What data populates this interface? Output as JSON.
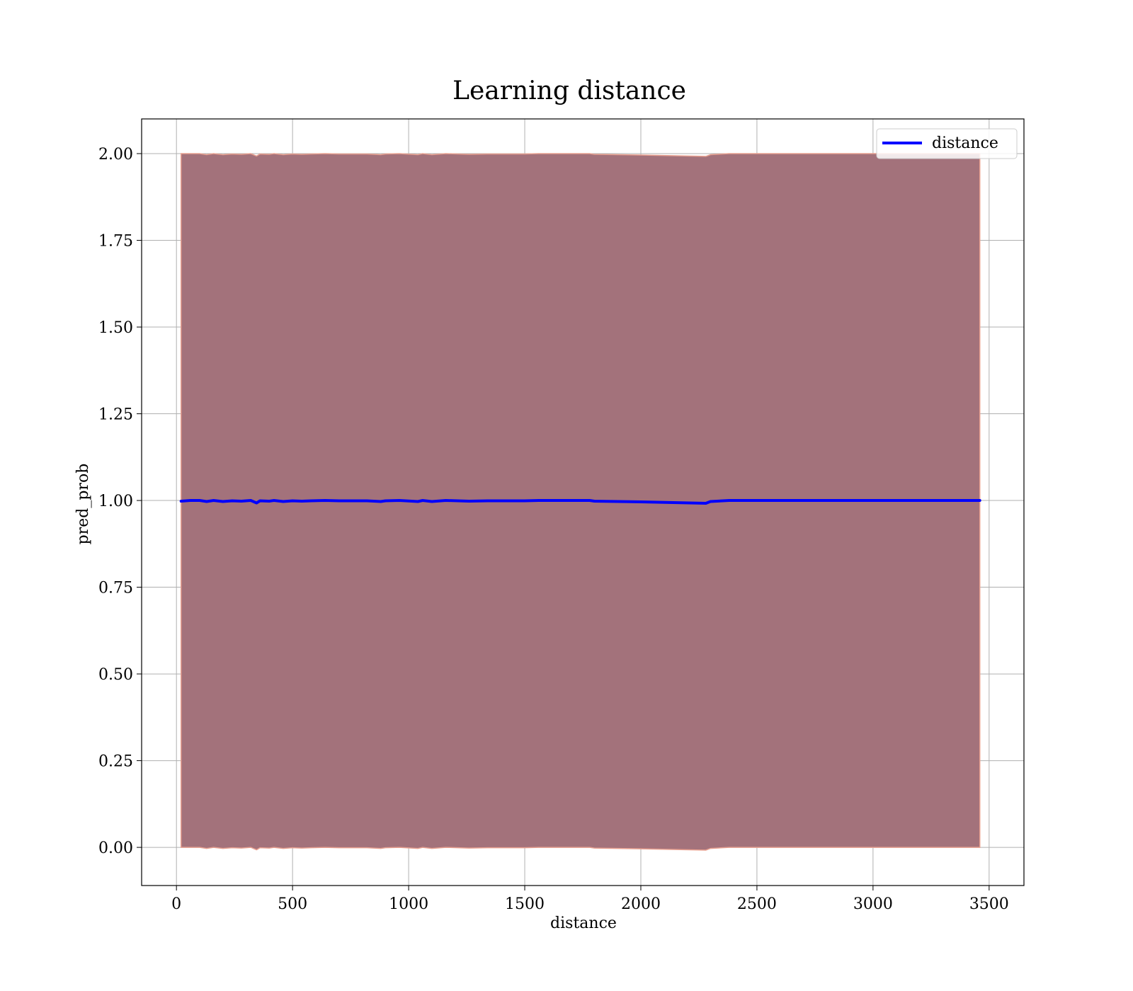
{
  "chart_data": {
    "type": "line",
    "title": "Learning distance",
    "xlabel": "distance",
    "ylabel": "pred_prob",
    "xlim": [
      -150,
      3650
    ],
    "ylim": [
      -0.11,
      2.1
    ],
    "grid": true,
    "legend": {
      "position": "top-right",
      "entries": [
        "distance"
      ]
    },
    "xticks": [
      0,
      500,
      1000,
      1500,
      2000,
      2500,
      3000,
      3500
    ],
    "xtick_labels": [
      "0",
      "500",
      "1000",
      "1500",
      "2000",
      "2500",
      "3000",
      "3500"
    ],
    "yticks": [
      0.0,
      0.25,
      0.5,
      0.75,
      1.0,
      1.25,
      1.5,
      1.75,
      2.0
    ],
    "ytick_labels": [
      "0.00",
      "0.25",
      "0.50",
      "0.75",
      "1.00",
      "1.25",
      "1.50",
      "1.75",
      "2.00"
    ],
    "colors": {
      "line": "#0000ff",
      "band_fill": "#a3727b",
      "band_edge": "#e8a090"
    },
    "series": [
      {
        "name": "distance",
        "x": [
          20,
          60,
          100,
          130,
          160,
          200,
          240,
          280,
          320,
          345,
          360,
          400,
          420,
          460,
          500,
          540,
          580,
          640,
          700,
          760,
          820,
          880,
          900,
          960,
          1040,
          1060,
          1100,
          1160,
          1260,
          1340,
          1420,
          1500,
          1560,
          1780,
          1800,
          2000,
          2280,
          2300,
          2380,
          2500,
          3000,
          3460
        ],
        "y": [
          0.998,
          1.0,
          1.0,
          0.997,
          1.0,
          0.997,
          0.999,
          0.998,
          1.0,
          0.993,
          0.999,
          0.998,
          1.0,
          0.997,
          0.999,
          0.998,
          0.999,
          1.0,
          0.999,
          0.999,
          0.999,
          0.997,
          0.999,
          1.0,
          0.997,
          1.0,
          0.997,
          1.0,
          0.998,
          0.999,
          0.999,
          0.999,
          1.0,
          1.0,
          0.998,
          0.996,
          0.992,
          0.997,
          1.0,
          1.0,
          1.0,
          1.0
        ],
        "band_lower": [
          0.0,
          0.0,
          0.0,
          -0.003,
          0.0,
          -0.003,
          -0.001,
          -0.002,
          0.0,
          -0.007,
          -0.001,
          -0.002,
          0.0,
          -0.003,
          -0.001,
          -0.002,
          -0.001,
          0.0,
          -0.001,
          -0.001,
          -0.001,
          -0.003,
          -0.001,
          0.0,
          -0.003,
          0.0,
          -0.003,
          0.0,
          -0.002,
          -0.001,
          -0.001,
          -0.001,
          0.0,
          0.0,
          -0.002,
          -0.004,
          -0.008,
          -0.003,
          0.0,
          0.0,
          0.0,
          0.0
        ],
        "band_upper": [
          2.0,
          2.0,
          2.0,
          1.997,
          2.0,
          1.997,
          1.999,
          1.998,
          2.0,
          1.993,
          1.999,
          1.998,
          2.0,
          1.997,
          1.999,
          1.998,
          1.999,
          2.0,
          1.999,
          1.999,
          1.999,
          1.997,
          1.999,
          2.0,
          1.997,
          2.0,
          1.997,
          2.0,
          1.998,
          1.999,
          1.999,
          1.999,
          2.0,
          2.0,
          1.998,
          1.996,
          1.992,
          1.997,
          2.0,
          2.0,
          2.0,
          2.0
        ]
      }
    ]
  }
}
